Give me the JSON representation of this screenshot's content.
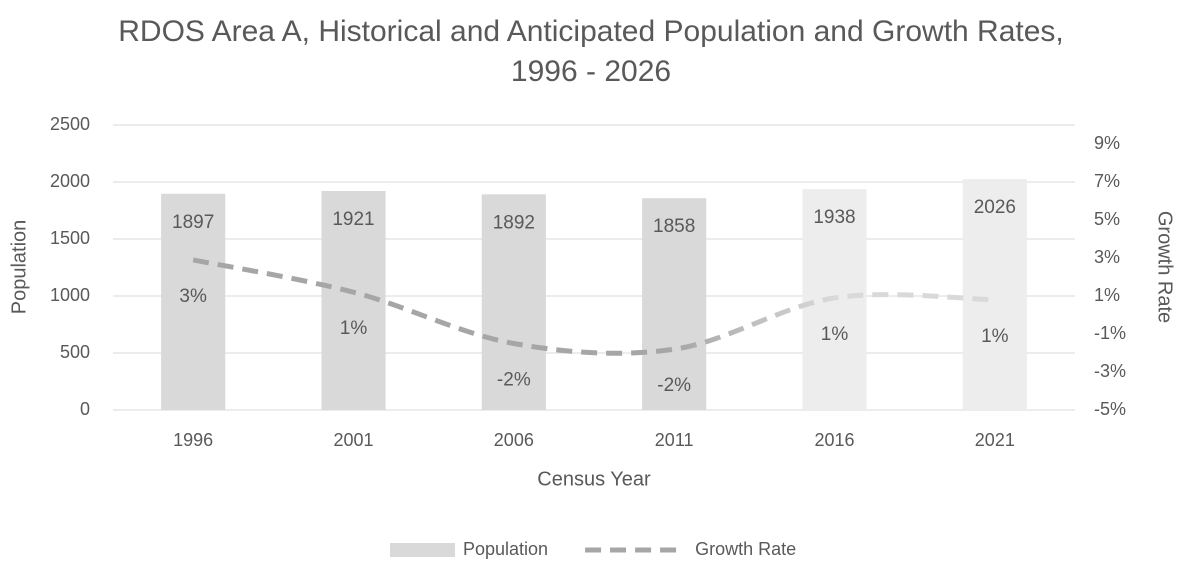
{
  "chart_data": {
    "type": "bar_line",
    "title": "RDOS Area A, Historical and Anticipated Population and Growth Rates, 1996 - 2026",
    "x_label": "Census Year",
    "y_label": "Population",
    "y2_label": "Growth Rate",
    "categories": [
      "1996",
      "2001",
      "2006",
      "2011",
      "2016",
      "2021"
    ],
    "series": [
      {
        "name": "Population",
        "type": "bar",
        "color": "#d9d9d9",
        "colors": [
          "#d9d9d9",
          "#d9d9d9",
          "#d9d9d9",
          "#d9d9d9",
          "#ededed",
          "#ededed"
        ],
        "values": [
          1897,
          1921,
          1892,
          1858,
          1938,
          2026
        ]
      },
      {
        "name": "Growth Rate",
        "type": "line",
        "axis": "y2",
        "color": "#a6a6a6",
        "dashed": true,
        "smooth": true,
        "colors": [
          "#a6a6a6",
          "#a6a6a6",
          "#a6a6a6",
          "#a6a6a6",
          "#d9d9d9",
          "#d9d9d9"
        ],
        "values": [
          2.9,
          1.2,
          -1.5,
          -1.8,
          0.9,
          0.8
        ],
        "value_labels": [
          "3%",
          "1%",
          "-2%",
          "-2%",
          "1%",
          "1%"
        ]
      }
    ],
    "ylim": [
      0,
      2500
    ],
    "yticks": [
      0,
      500,
      1000,
      1500,
      2000,
      2500
    ],
    "y2lim": [
      -5,
      10
    ],
    "y2ticks": [
      {
        "value": -5,
        "label": "-5%"
      },
      {
        "value": -3,
        "label": "-3%"
      },
      {
        "value": -1,
        "label": "-1%"
      },
      {
        "value": 1,
        "label": "1%"
      },
      {
        "value": 3,
        "label": "3%"
      },
      {
        "value": 5,
        "label": "5%"
      },
      {
        "value": 7,
        "label": "7%"
      },
      {
        "value": 9,
        "label": "9%"
      }
    ],
    "grid": true,
    "legend": "bottom"
  }
}
